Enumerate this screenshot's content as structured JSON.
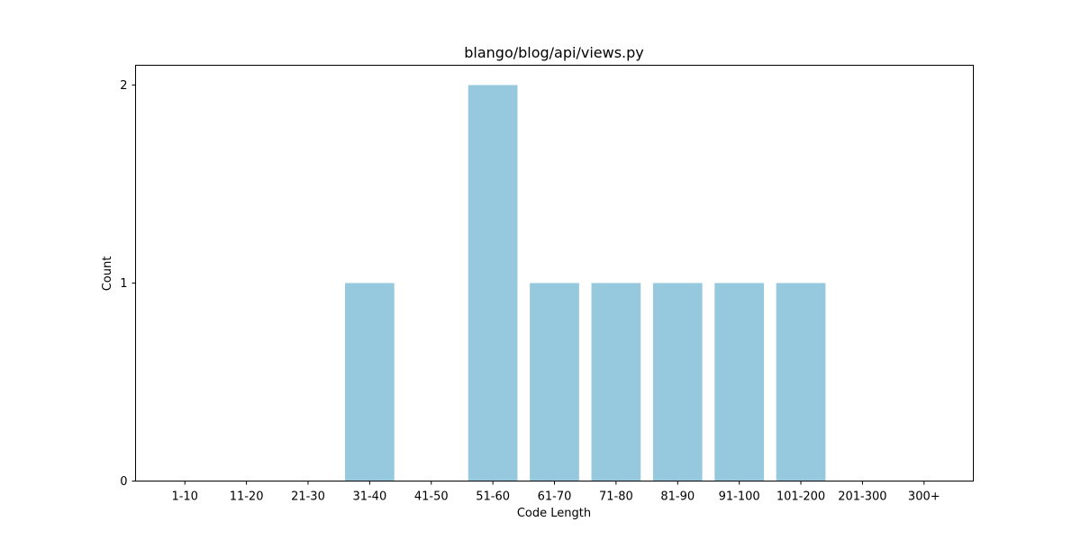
{
  "chart_data": {
    "type": "bar",
    "title": "blango/blog/api/views.py",
    "xlabel": "Code Length",
    "ylabel": "Count",
    "categories": [
      "1-10",
      "11-20",
      "21-30",
      "31-40",
      "41-50",
      "51-60",
      "61-70",
      "71-80",
      "81-90",
      "91-100",
      "101-200",
      "201-300",
      "300+"
    ],
    "values": [
      0,
      0,
      0,
      1,
      0,
      2,
      1,
      1,
      1,
      1,
      1,
      0,
      0
    ],
    "yticks": [
      "0",
      "1",
      "2"
    ],
    "ylim": [
      0,
      2.1
    ],
    "grid": false,
    "bar_color": "#96c9de"
  }
}
